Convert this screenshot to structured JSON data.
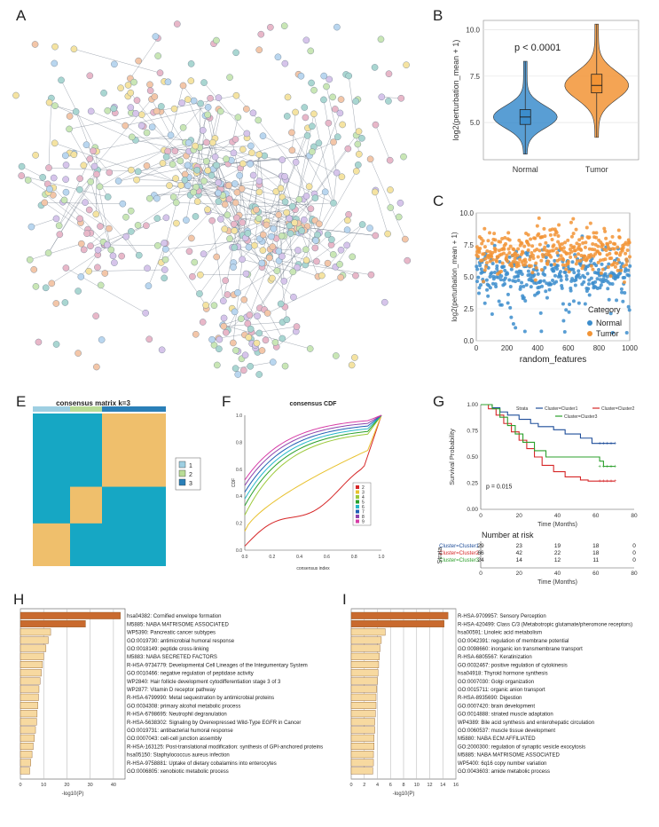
{
  "panel_labels": {
    "A": "A",
    "B": "B",
    "C": "C",
    "E": "E",
    "F": "F",
    "G": "G",
    "H": "H",
    "I": "I"
  },
  "colors": {
    "normal": "#3c8dcc",
    "tumor": "#f29436",
    "bar_dark": "#c96a2e",
    "bar_light": "#f7d9a0",
    "mat_teal": "#16a7c4",
    "mat_tan": "#efbf6c"
  },
  "chart_data": [
    {
      "id": "B",
      "type": "violin",
      "title": "",
      "categories": [
        "Normal",
        "Tumor"
      ],
      "ylabel": "log2(perturbation_mean + 1)",
      "ylim": [
        3.0,
        10.5
      ],
      "yticks": [
        "5.0",
        "7.5",
        "10.0"
      ],
      "ytick_values": [
        5.0,
        7.5,
        10.0
      ],
      "annotation": "p < 0.0001",
      "stats": [
        {
          "name": "Normal",
          "min": 3.3,
          "q1": 4.9,
          "median": 5.3,
          "q3": 5.7,
          "max": 8.3
        },
        {
          "name": "Tumor",
          "min": 4.2,
          "q1": 6.6,
          "median": 7.0,
          "q3": 7.6,
          "max": 10.3
        }
      ]
    },
    {
      "id": "C",
      "type": "scatter",
      "xlabel": "random_features",
      "ylabel": "log2(perturbation_mean + 1)",
      "xlim": [
        0,
        1000
      ],
      "ylim": [
        0,
        10
      ],
      "xticks": [
        "0",
        "200",
        "400",
        "600",
        "800",
        "1000"
      ],
      "yticks": [
        "0.0",
        "2.5",
        "5.0",
        "7.5",
        "10.0"
      ],
      "legend_title": "Category",
      "series": [
        {
          "name": "Normal",
          "mean": 5.2,
          "sd": 0.9
        },
        {
          "name": "Tumor",
          "mean": 7.1,
          "sd": 0.9
        }
      ]
    },
    {
      "id": "E",
      "type": "heatmap",
      "title": "consensus matrix k=3",
      "clusters": [
        {
          "label": "1",
          "fraction": 0.28
        },
        {
          "label": "2",
          "fraction": 0.24
        },
        {
          "label": "3",
          "fraction": 0.48
        }
      ],
      "legend": [
        "1",
        "2",
        "3"
      ]
    },
    {
      "id": "F",
      "type": "line",
      "title": "consensus CDF",
      "xlabel": "consensus index",
      "ylabel": "CDF",
      "xticks": [
        "0.0",
        "0.2",
        "0.4",
        "0.6",
        "0.8",
        "1.0"
      ],
      "yticks": [
        "0.0",
        "0.2",
        "0.4",
        "0.6",
        "0.8",
        "1.0"
      ],
      "series": [
        {
          "name": "2",
          "color": "#d62728",
          "start": 0.03,
          "shape": "slow"
        },
        {
          "name": "3",
          "color": "#e8c12e",
          "start": 0.14,
          "shape": "mid"
        },
        {
          "name": "4",
          "color": "#9cc93a",
          "start": 0.26,
          "shape": "fast"
        },
        {
          "name": "5",
          "color": "#2ca02c",
          "start": 0.33,
          "shape": "fast"
        },
        {
          "name": "6",
          "color": "#26b7c9",
          "start": 0.38,
          "shape": "fast"
        },
        {
          "name": "7",
          "color": "#1f5fb4",
          "start": 0.43,
          "shape": "fast"
        },
        {
          "name": "8",
          "color": "#8e44ad",
          "start": 0.48,
          "shape": "fast"
        },
        {
          "name": "9",
          "color": "#d63ca6",
          "start": 0.52,
          "shape": "fast"
        }
      ]
    },
    {
      "id": "G",
      "type": "survival",
      "xlabel": "Time (Months)",
      "ylabel": "Survival Probability",
      "xticks": [
        "0",
        "20",
        "40",
        "60",
        "80"
      ],
      "yticks": [
        "0.00",
        "0.25",
        "0.50",
        "0.75",
        "1.00"
      ],
      "pvalue": "p = 0.015",
      "strata_label": "Strata",
      "series": [
        {
          "name": "Cluster=Cluster1",
          "color": "#1f4e9a",
          "final": 0.63,
          "steps": [
            [
              0,
              1
            ],
            [
              6,
              0.97
            ],
            [
              10,
              0.93
            ],
            [
              14,
              0.9
            ],
            [
              20,
              0.86
            ],
            [
              26,
              0.82
            ],
            [
              30,
              0.79
            ],
            [
              38,
              0.76
            ],
            [
              44,
              0.72
            ],
            [
              52,
              0.68
            ],
            [
              58,
              0.63
            ],
            [
              70,
              0.63
            ]
          ]
        },
        {
          "name": "Cluster=Cluster2",
          "color": "#d62728",
          "final": 0.27,
          "steps": [
            [
              0,
              1
            ],
            [
              4,
              0.96
            ],
            [
              8,
              0.9
            ],
            [
              12,
              0.82
            ],
            [
              16,
              0.74
            ],
            [
              20,
              0.66
            ],
            [
              24,
              0.58
            ],
            [
              28,
              0.5
            ],
            [
              32,
              0.42
            ],
            [
              38,
              0.36
            ],
            [
              44,
              0.31
            ],
            [
              52,
              0.28
            ],
            [
              56,
              0.27
            ],
            [
              70,
              0.27
            ]
          ]
        },
        {
          "name": "Cluster=Cluster3",
          "color": "#2ca02c",
          "final": 0.41,
          "steps": [
            [
              0,
              1
            ],
            [
              6,
              0.96
            ],
            [
              10,
              0.88
            ],
            [
              14,
              0.8
            ],
            [
              18,
              0.72
            ],
            [
              22,
              0.64
            ],
            [
              28,
              0.56
            ],
            [
              34,
              0.5
            ],
            [
              40,
              0.5
            ],
            [
              50,
              0.5
            ],
            [
              62,
              0.46
            ],
            [
              64,
              0.41
            ],
            [
              70,
              0.41
            ]
          ]
        }
      ],
      "risk_table": {
        "title": "Number at risk",
        "rows": [
          {
            "name": "Cluster=Cluster1",
            "color": "#1f4e9a",
            "values": [
              "29",
              "23",
              "19",
              "18",
              "0"
            ]
          },
          {
            "name": "Cluster=Cluster2",
            "color": "#d62728",
            "values": [
              "66",
              "42",
              "22",
              "18",
              "0"
            ]
          },
          {
            "name": "Cluster=Cluster3",
            "color": "#2ca02c",
            "values": [
              "24",
              "14",
              "12",
              "11",
              "0"
            ]
          }
        ],
        "xlabel": "Time (Months)",
        "ylabel": "Strata",
        "xticks": [
          "0",
          "20",
          "40",
          "60",
          "80"
        ]
      }
    },
    {
      "id": "H",
      "type": "bar",
      "xlabel": "-log10(P)",
      "xlim": [
        0,
        45
      ],
      "xticks": [
        "0",
        "10",
        "20",
        "30",
        "40"
      ],
      "categories": [
        "hsa04382: Cornified envelope formation",
        "M5885: NABA MATRISOME ASSOCIATED",
        "WP5390: Pancreatic cancer subtypes",
        "GO:0019730: antimicrobial humoral response",
        "GO:0018149: peptide cross-linking",
        "M5883: NABA SECRETED FACTORS",
        "R-HSA-9734779: Developmental Cell Lineages of the Integumentary System",
        "GO:0010466: negative regulation of peptidase activity",
        "WP2840: Hair follicle development cytodifferentiation stage 3 of 3",
        "WP2877: Vitamin D receptor pathway",
        "R-HSA-6799990: Metal sequestration by antimicrobial proteins",
        "GO:0034308: primary alcohol metabolic process",
        "R-HSA-6798695: Neutrophil degranulation",
        "R-HSA-5638302: Signaling by Overexpressed Wild-Type EGFR in Cancer",
        "GO:0019731: antibacterial humoral response",
        "GO:0007043: cell-cell junction assembly",
        "R-HSA-163125: Post-translational modification: synthesis of GPI-anchored proteins",
        "hsa05150: Staphylococcus aureus infection",
        "R-HSA-9758881: Uptake of dietary cobalamins into enterocytes",
        "GO:0006805: xenobiotic metabolic process"
      ],
      "values": [
        43,
        28,
        13,
        12,
        11,
        10,
        9.5,
        9,
        8.5,
        8,
        7.8,
        7.5,
        7.2,
        7,
        6.5,
        6,
        5.5,
        5,
        4.5,
        4
      ]
    },
    {
      "id": "I",
      "type": "bar",
      "xlabel": "-log10(P)",
      "xlim": [
        0,
        16
      ],
      "xticks": [
        "0",
        "2",
        "4",
        "6",
        "8",
        "10",
        "12",
        "14",
        "16"
      ],
      "categories": [
        "R-HSA-9709957: Sensory Perception",
        "R-HSA-420499: Class C/3 (Metabotropic glutamate/pheromone receptors)",
        "hsa00591: Linoleic acid metabolism",
        "GO:0042391: regulation of membrane potential",
        "GO:0098660: inorganic ion transmembrane transport",
        "R-HSA-6805567: Keratinization",
        "GO:0032467: positive regulation of cytokinesis",
        "hsa04918: Thyroid hormone synthesis",
        "GO:0007030: Golgi organization",
        "GO:0015711: organic anion transport",
        "R-HSA-8935690: Digestion",
        "GO:0007420: brain development",
        "GO:0014888: striated muscle adaptation",
        "WP4389: Bile acid synthesis and enterohepatic circulation",
        "GO:0060537: muscle tissue development",
        "M5880: NABA ECM AFFILIATED",
        "GO:2000300: regulation of synaptic vesicle exocytosis",
        "M5885: NABA MATRISOME ASSOCIATED",
        "WP5400: 6q16 copy number variation",
        "GO:0043603: amide metabolic process"
      ],
      "values": [
        14.8,
        14.2,
        5.2,
        4.6,
        4.4,
        4.3,
        4.2,
        4.1,
        4.0,
        3.9,
        3.8,
        3.8,
        3.7,
        3.6,
        3.6,
        3.5,
        3.5,
        3.4,
        3.4,
        3.3
      ]
    }
  ]
}
